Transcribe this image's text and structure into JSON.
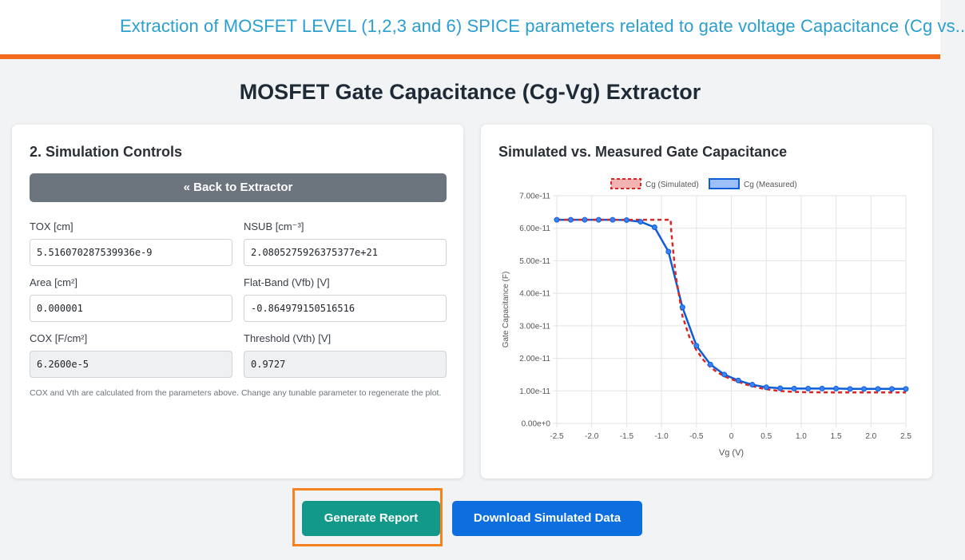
{
  "header": {
    "title": "Extraction of MOSFET LEVEL (1,2,3 and 6) SPICE parameters related to gate voltage Capacitance (Cg vs.."
  },
  "page_title": "MOSFET Gate Capacitance (Cg-Vg) Extractor",
  "controls": {
    "title": "2. Simulation Controls",
    "back_label": "« Back to Extractor",
    "fields": [
      {
        "label": "TOX [cm]",
        "value": "5.516070287539936e-9",
        "readonly": false
      },
      {
        "label": "NSUB [cm⁻³]",
        "value": "2.0805275926375377e+21",
        "readonly": false
      },
      {
        "label": "Area [cm²]",
        "value": "0.000001",
        "readonly": false
      },
      {
        "label": "Flat-Band (Vfb) [V]",
        "value": "-0.864979150516516",
        "readonly": false
      },
      {
        "label": "COX [F/cm²]",
        "value": "6.2600e-5",
        "readonly": true
      },
      {
        "label": "Threshold (Vth) [V]",
        "value": "0.9727",
        "readonly": true
      }
    ],
    "note": "COX and Vth are calculated from the parameters above. Change any tunable parameter to regenerate the plot."
  },
  "chart_panel": {
    "title": "Simulated vs. Measured Gate Capacitance"
  },
  "chart_data": {
    "type": "line",
    "xlabel": "Vg (V)",
    "ylabel": "Gate Capacitance (F)",
    "xlim": [
      -2.5,
      2.5
    ],
    "ylim": [
      0,
      7e-11
    ],
    "x_ticks": [
      "-2.5",
      "-2.0",
      "-1.5",
      "-1.0",
      "-0.5",
      "0",
      "0.5",
      "1.0",
      "1.5",
      "2.0",
      "2.5"
    ],
    "y_ticks": [
      "0.00e+0",
      "1.00e-11",
      "2.00e-11",
      "3.00e-11",
      "4.00e-11",
      "5.00e-11",
      "6.00e-11",
      "7.00e-11"
    ],
    "legend_position": "top",
    "grid": true,
    "series": [
      {
        "name": "Cg (Simulated)",
        "color": "#dc2626",
        "style": "dashed",
        "x": [
          -2.5,
          -2.0,
          -1.5,
          -1.0,
          -0.87,
          -0.86,
          -0.8,
          -0.7,
          -0.6,
          -0.5,
          -0.4,
          -0.3,
          -0.2,
          -0.1,
          0.0,
          0.1,
          0.2,
          0.4,
          0.6,
          0.8,
          1.0,
          1.5,
          2.0,
          2.5
        ],
        "values": [
          6.26e-11,
          6.26e-11,
          6.26e-11,
          6.26e-11,
          6.26e-11,
          5.9e-11,
          4.6e-11,
          3.3e-11,
          2.65e-11,
          2.25e-11,
          1.95e-11,
          1.73e-11,
          1.57e-11,
          1.45e-11,
          1.36e-11,
          1.28e-11,
          1.2e-11,
          1.09e-11,
          1.02e-11,
          9.8e-12,
          9.6e-12,
          9.5e-12,
          9.5e-12,
          9.5e-12
        ]
      },
      {
        "name": "Cg (Measured)",
        "color": "#0b5ed7",
        "style": "solid",
        "x": [
          -2.5,
          -2.3,
          -2.1,
          -1.9,
          -1.7,
          -1.5,
          -1.3,
          -1.1,
          -0.9,
          -0.7,
          -0.5,
          -0.3,
          -0.1,
          0.1,
          0.3,
          0.5,
          0.7,
          0.9,
          1.1,
          1.3,
          1.5,
          1.7,
          1.9,
          2.1,
          2.3,
          2.5
        ],
        "values": [
          6.26e-11,
          6.26e-11,
          6.26e-11,
          6.26e-11,
          6.26e-11,
          6.25e-11,
          6.2e-11,
          6.03e-11,
          5.28e-11,
          3.57e-11,
          2.39e-11,
          1.81e-11,
          1.5e-11,
          1.32e-11,
          1.19e-11,
          1.11e-11,
          1.08e-11,
          1.07e-11,
          1.07e-11,
          1.07e-11,
          1.07e-11,
          1.06e-11,
          1.06e-11,
          1.06e-11,
          1.06e-11,
          1.06e-11
        ]
      }
    ]
  },
  "actions": {
    "generate_label": "Generate Report",
    "download_label": "Download Simulated Data"
  },
  "colors": {
    "accent_orange": "#f26b1d",
    "header_text": "#2a9fd0",
    "generate_button": "#12998a",
    "download_button": "#0d6ee0",
    "back_button": "#6c757d"
  }
}
